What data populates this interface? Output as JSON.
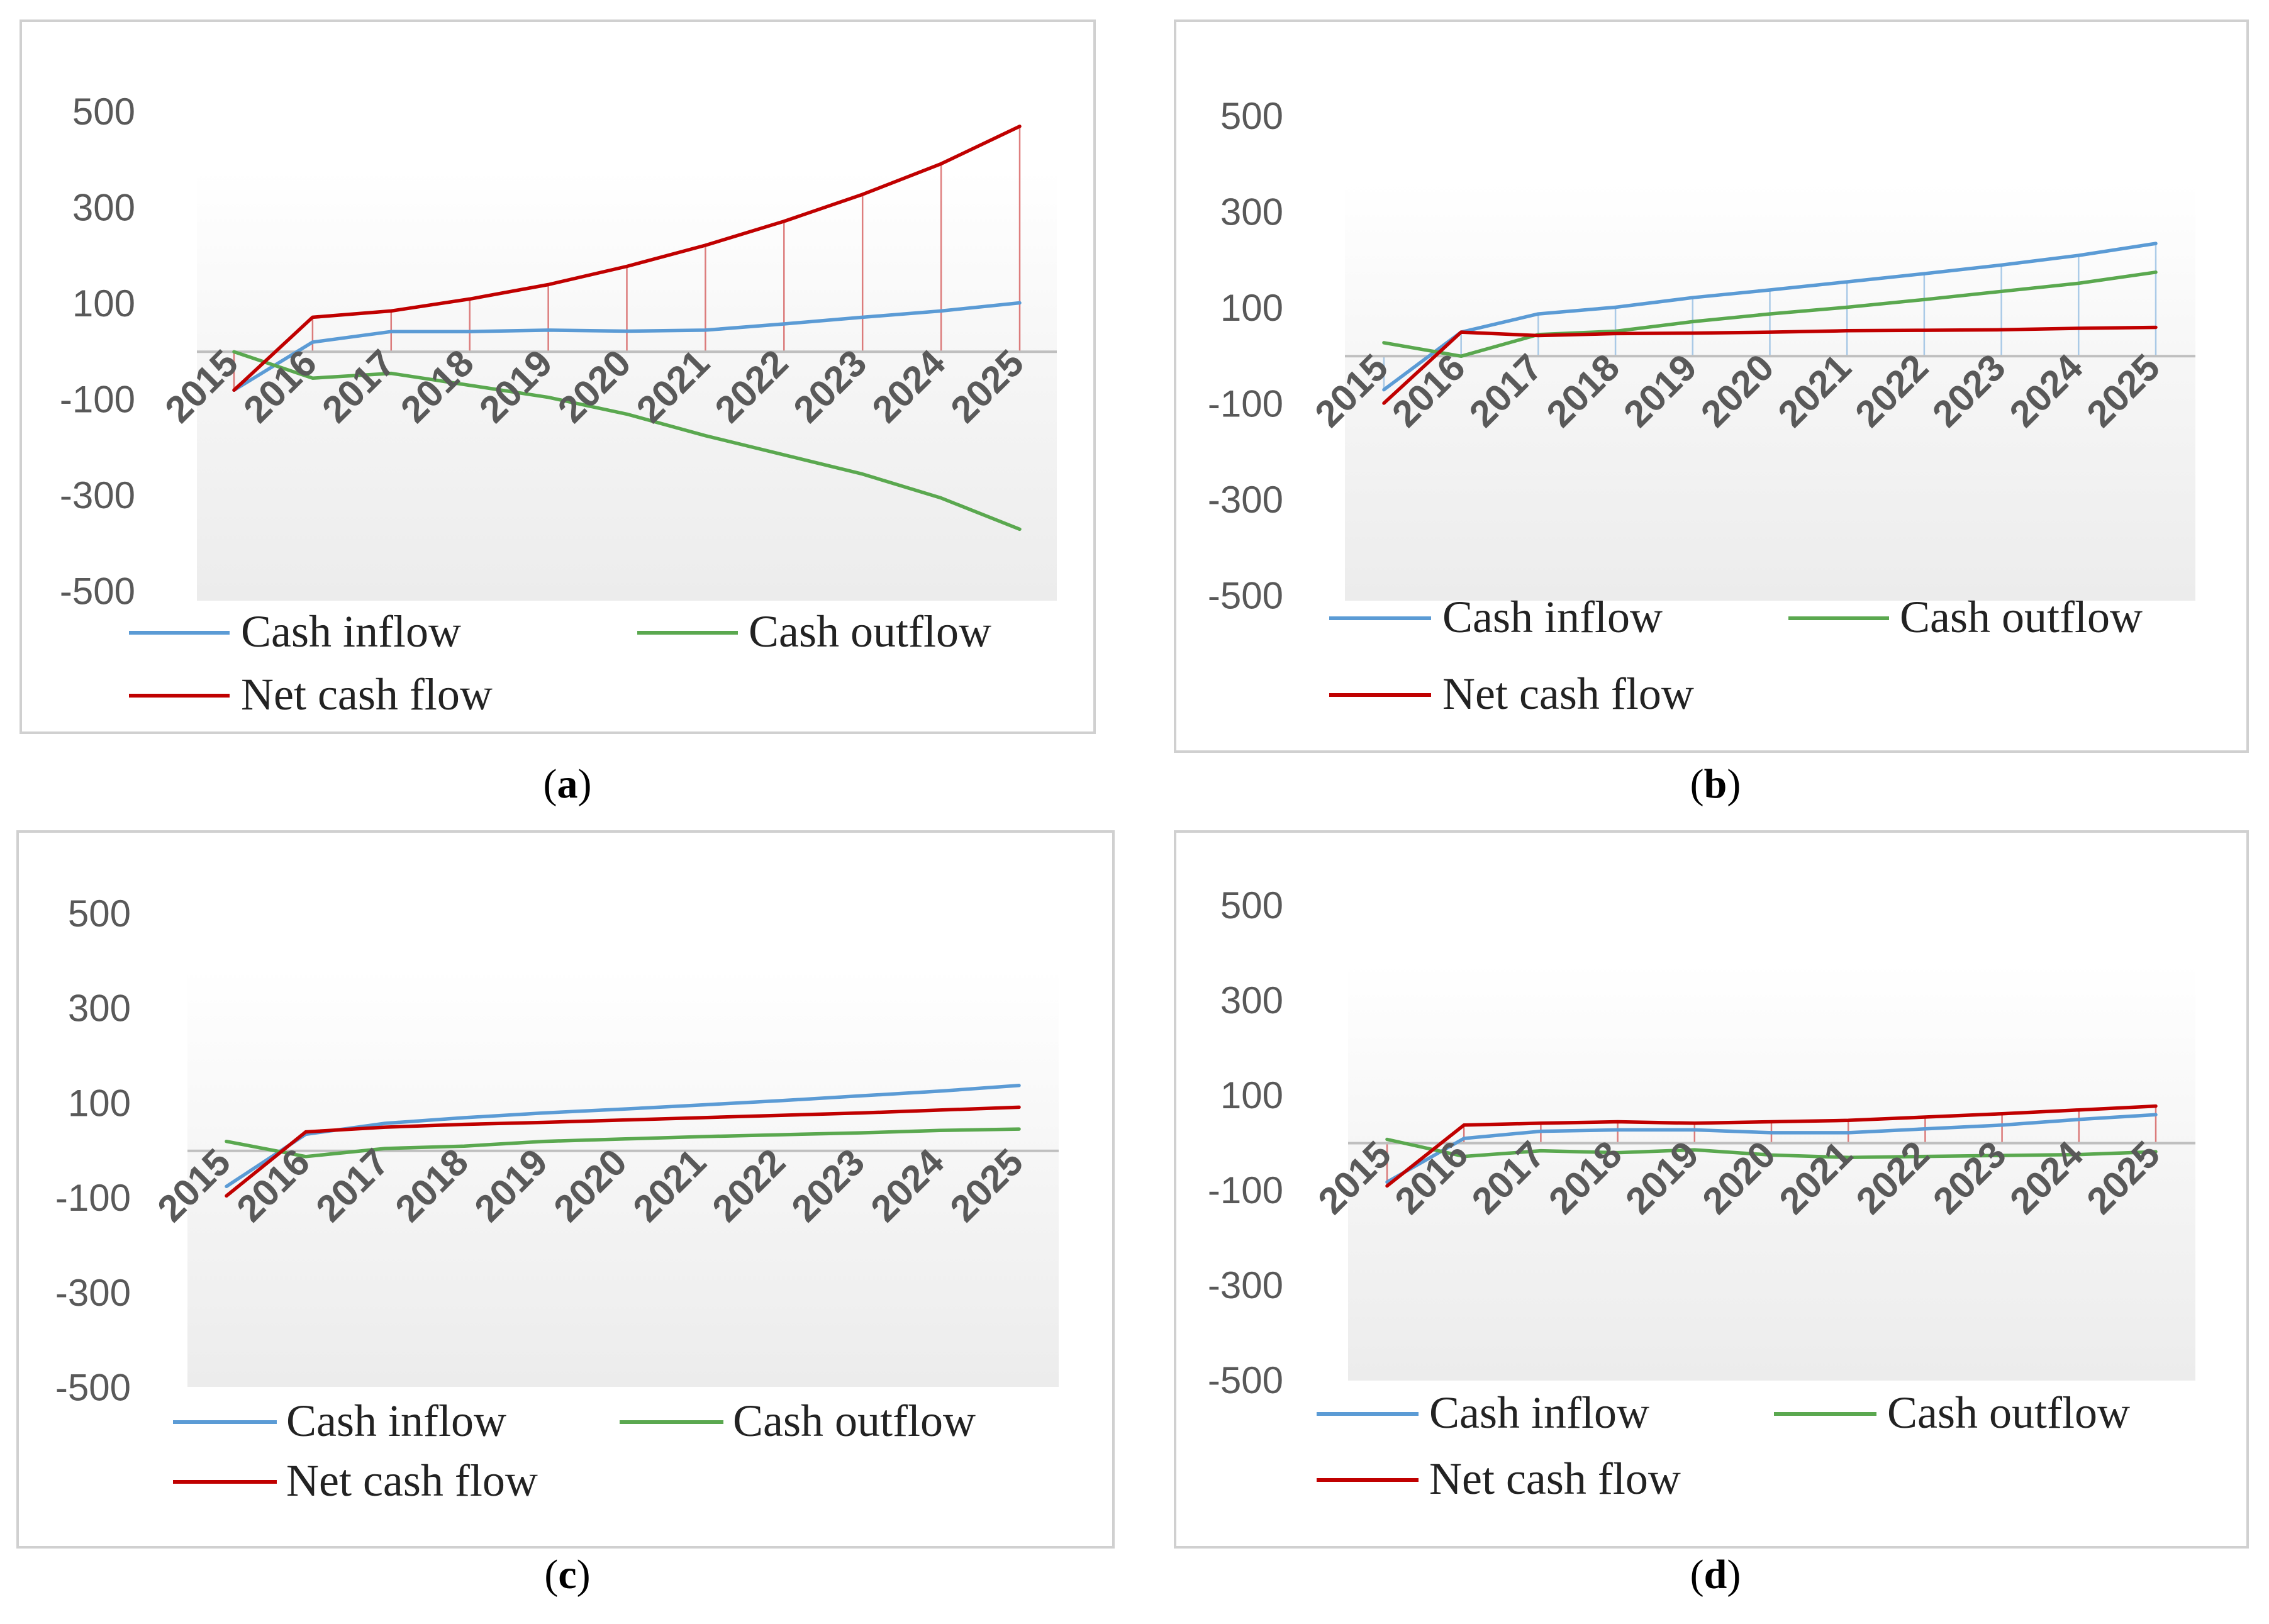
{
  "colors": {
    "inflow": "#5b9bd5",
    "outflow": "#5aa84f",
    "net": "#c00000",
    "zero_line": "#bfbfbf",
    "frame": "#d0d0d0",
    "tick_text": "#595959"
  },
  "chart_data": [
    {
      "id": "a",
      "type": "line",
      "caption": "a",
      "ylim": [
        -500,
        500
      ],
      "yticks": [
        "500",
        "300",
        "100",
        "-100",
        "-300",
        "-500"
      ],
      "categories": [
        "2015",
        "2016",
        "2017",
        "2018",
        "2019",
        "2020",
        "2021",
        "2022",
        "2023",
        "2024",
        "2025"
      ],
      "drop_line_series": "Net cash flow",
      "legend_position": "bottom",
      "series": [
        {
          "name": "Cash inflow",
          "color": "#5b9bd5",
          "values": [
            -80,
            20,
            42,
            42,
            45,
            43,
            45,
            58,
            72,
            85,
            102
          ]
        },
        {
          "name": "Cash outflow",
          "color": "#5aa84f",
          "values": [
            0,
            -55,
            -45,
            -70,
            -95,
            -130,
            -175,
            -215,
            -255,
            -305,
            -370
          ]
        },
        {
          "name": "Net cash flow",
          "color": "#c00000",
          "values": [
            -80,
            72,
            85,
            110,
            140,
            178,
            222,
            272,
            328,
            392,
            470
          ]
        }
      ]
    },
    {
      "id": "b",
      "type": "line",
      "caption": "b",
      "ylim": [
        -500,
        500
      ],
      "yticks": [
        "500",
        "300",
        "100",
        "-100",
        "-300",
        "-500"
      ],
      "categories": [
        "2015",
        "2016",
        "2017",
        "2018",
        "2019",
        "2020",
        "2021",
        "2022",
        "2023",
        "2024",
        "2025"
      ],
      "drop_line_series": "Cash inflow",
      "legend_position": "bottom",
      "series": [
        {
          "name": "Cash inflow",
          "color": "#5b9bd5",
          "values": [
            -70,
            50,
            88,
            102,
            122,
            138,
            155,
            172,
            190,
            210,
            235
          ]
        },
        {
          "name": "Cash outflow",
          "color": "#5aa84f",
          "values": [
            28,
            0,
            45,
            52,
            72,
            88,
            102,
            118,
            135,
            152,
            175
          ]
        },
        {
          "name": "Net cash flow",
          "color": "#c00000",
          "values": [
            -98,
            50,
            43,
            47,
            48,
            50,
            53,
            54,
            55,
            58,
            60
          ]
        }
      ]
    },
    {
      "id": "c",
      "type": "line",
      "caption": "c",
      "ylim": [
        -500,
        500
      ],
      "yticks": [
        "500",
        "300",
        "100",
        "-100",
        "-300",
        "-500"
      ],
      "categories": [
        "2015",
        "2016",
        "2017",
        "2018",
        "2019",
        "2020",
        "2021",
        "2022",
        "2023",
        "2024",
        "2025"
      ],
      "drop_line_series": "",
      "legend_position": "bottom",
      "series": [
        {
          "name": "Cash inflow",
          "color": "#5b9bd5",
          "values": [
            -75,
            35,
            58,
            70,
            80,
            88,
            97,
            106,
            116,
            126,
            138
          ]
        },
        {
          "name": "Cash outflow",
          "color": "#5aa84f",
          "values": [
            20,
            -12,
            5,
            10,
            20,
            25,
            30,
            34,
            38,
            43,
            46
          ]
        },
        {
          "name": "Net cash flow",
          "color": "#c00000",
          "values": [
            -95,
            40,
            50,
            56,
            60,
            65,
            70,
            75,
            80,
            86,
            92
          ]
        }
      ]
    },
    {
      "id": "d",
      "type": "line",
      "caption": "d",
      "ylim": [
        -500,
        500
      ],
      "yticks": [
        "500",
        "300",
        "100",
        "-100",
        "-300",
        "-500"
      ],
      "categories": [
        "2015",
        "2016",
        "2017",
        "2018",
        "2019",
        "2020",
        "2021",
        "2022",
        "2023",
        "2024",
        "2025"
      ],
      "drop_line_series": "Net cash flow",
      "legend_position": "bottom",
      "series": [
        {
          "name": "Cash inflow",
          "color": "#5b9bd5",
          "values": [
            -82,
            10,
            25,
            28,
            28,
            22,
            22,
            30,
            38,
            50,
            60
          ]
        },
        {
          "name": "Cash outflow",
          "color": "#5aa84f",
          "values": [
            8,
            -28,
            -16,
            -20,
            -14,
            -25,
            -30,
            -28,
            -26,
            -24,
            -18
          ]
        },
        {
          "name": "Net cash flow",
          "color": "#c00000",
          "values": [
            -90,
            38,
            42,
            45,
            42,
            45,
            48,
            55,
            62,
            70,
            78
          ]
        }
      ]
    }
  ]
}
